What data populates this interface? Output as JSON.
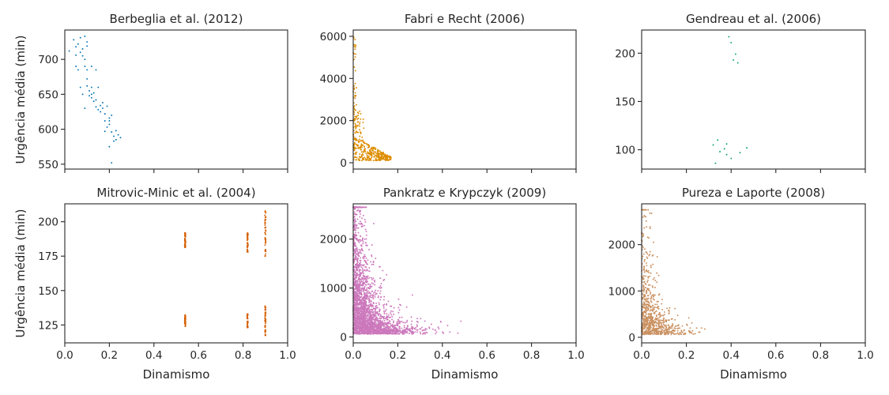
{
  "figure": {
    "shared_x_label": "Dinamismo",
    "shared_y_label": "Urgência média (min)",
    "x_ticks": [
      "0.0",
      "0.2",
      "0.4",
      "0.6",
      "0.8",
      "1.0"
    ]
  },
  "chart_data": [
    {
      "type": "scatter",
      "title": "Berbeglia et al. (2012)",
      "xlabel": "",
      "ylabel": "Urgência média (min)",
      "xlim": [
        0,
        1
      ],
      "ylim": [
        543,
        742
      ],
      "y_ticks": [
        550,
        600,
        650,
        700
      ],
      "color": "#0173b2",
      "points": [
        [
          0.02,
          712
        ],
        [
          0.04,
          728
        ],
        [
          0.05,
          718
        ],
        [
          0.06,
          722
        ],
        [
          0.07,
          731
        ],
        [
          0.07,
          710
        ],
        [
          0.08,
          705
        ],
        [
          0.09,
          733
        ],
        [
          0.09,
          700
        ],
        [
          0.1,
          725
        ],
        [
          0.1,
          719
        ],
        [
          0.05,
          690
        ],
        [
          0.06,
          685
        ],
        [
          0.07,
          660
        ],
        [
          0.08,
          650
        ],
        [
          0.09,
          690
        ],
        [
          0.1,
          672
        ],
        [
          0.1,
          662
        ],
        [
          0.11,
          655
        ],
        [
          0.11,
          648
        ],
        [
          0.12,
          690
        ],
        [
          0.12,
          660
        ],
        [
          0.12,
          645
        ],
        [
          0.13,
          652
        ],
        [
          0.13,
          640
        ],
        [
          0.14,
          632
        ],
        [
          0.14,
          685
        ],
        [
          0.15,
          628
        ],
        [
          0.15,
          660
        ],
        [
          0.16,
          634
        ],
        [
          0.17,
          638
        ],
        [
          0.17,
          630
        ],
        [
          0.18,
          622
        ],
        [
          0.18,
          612
        ],
        [
          0.19,
          603
        ],
        [
          0.19,
          633
        ],
        [
          0.2,
          616
        ],
        [
          0.2,
          607
        ],
        [
          0.21,
          620
        ],
        [
          0.21,
          596
        ],
        [
          0.22,
          590
        ],
        [
          0.22,
          583
        ],
        [
          0.23,
          598
        ],
        [
          0.23,
          585
        ],
        [
          0.24,
          592
        ],
        [
          0.25,
          588
        ],
        [
          0.2,
          575
        ],
        [
          0.21,
          552
        ],
        [
          0.18,
          597
        ],
        [
          0.09,
          630
        ],
        [
          0.1,
          685
        ],
        [
          0.05,
          706
        ],
        [
          0.08,
          715
        ],
        [
          0.12,
          650
        ],
        [
          0.14,
          642
        ],
        [
          0.16,
          625
        ],
        [
          0.2,
          612
        ]
      ]
    },
    {
      "type": "scatter",
      "title": "Fabri e Recht (2006)",
      "xlabel": "",
      "ylabel": "",
      "xlim": [
        0,
        1
      ],
      "ylim": [
        -300,
        6300
      ],
      "y_ticks": [
        0,
        2000,
        4000,
        6000
      ],
      "color": "#de8f05",
      "generated_points": 420
    },
    {
      "type": "scatter",
      "title": "Gendreau et al. (2006)",
      "xlabel": "",
      "ylabel": "",
      "xlim": [
        0,
        1
      ],
      "ylim": [
        80,
        224
      ],
      "y_ticks": [
        100,
        150,
        200
      ],
      "color": "#029e73",
      "points": [
        [
          0.39,
          217
        ],
        [
          0.4,
          211
        ],
        [
          0.42,
          199
        ],
        [
          0.41,
          193
        ],
        [
          0.43,
          190
        ],
        [
          0.32,
          105
        ],
        [
          0.34,
          110
        ],
        [
          0.35,
          98
        ],
        [
          0.37,
          101
        ],
        [
          0.38,
          106
        ],
        [
          0.38,
          95
        ],
        [
          0.4,
          91
        ],
        [
          0.44,
          97
        ],
        [
          0.47,
          102
        ],
        [
          0.33,
          86
        ]
      ]
    },
    {
      "type": "scatter",
      "title": "Mitrovic-Minic et al. (2004)",
      "xlabel": "Dinamismo",
      "ylabel": "Urgência média (min)",
      "xlim": [
        0,
        1
      ],
      "ylim": [
        112,
        213
      ],
      "y_ticks": [
        125,
        150,
        175,
        200
      ],
      "color": "#d55e00",
      "generated_columns": [
        {
          "x": 0.54,
          "ranges": [
            [
              181,
              192
            ],
            [
              124,
              133
            ]
          ]
        },
        {
          "x": 0.82,
          "ranges": [
            [
              178,
              193
            ],
            [
              123,
              133
            ]
          ]
        },
        {
          "x": 0.9,
          "ranges": [
            [
              175,
              209
            ],
            [
              117,
              139
            ]
          ]
        }
      ]
    },
    {
      "type": "scatter",
      "title": "Pankratz e Krypczyk (2009)",
      "xlabel": "Dinamismo",
      "ylabel": "",
      "xlim": [
        0,
        1
      ],
      "ylim": [
        -120,
        2720
      ],
      "y_ticks": [
        0,
        1000,
        2000
      ],
      "color": "#cc78bc",
      "generated_points": 2600
    },
    {
      "type": "scatter",
      "title": "Pureza e Laporte (2008)",
      "xlabel": "Dinamismo",
      "ylabel": "",
      "xlim": [
        0,
        1
      ],
      "ylim": [
        -120,
        2880
      ],
      "y_ticks": [
        0,
        1000,
        2000
      ],
      "color": "#ca9161",
      "generated_points": 800
    }
  ]
}
